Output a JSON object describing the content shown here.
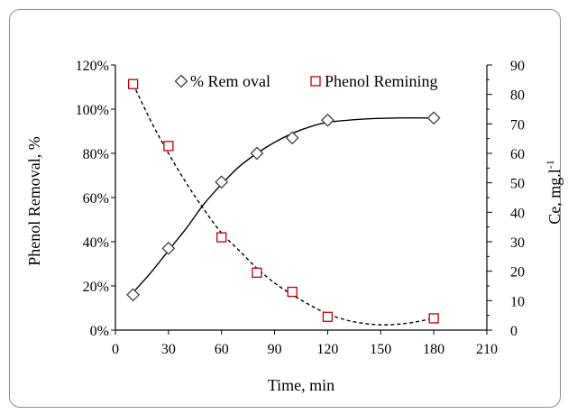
{
  "chart_data": {
    "type": "line",
    "xlabel": "Time,  min",
    "ylabel_left": "Phenol Removal,  %",
    "ylabel_right": "Ce, mg.l",
    "ylabel_right_superscript": "-1",
    "xlim": [
      0,
      210
    ],
    "x_ticks": [
      "0",
      "30",
      "60",
      "90",
      "120",
      "150",
      "180",
      "210"
    ],
    "ylim_left": [
      0,
      120
    ],
    "y_left_ticks": [
      "0%",
      "20%",
      "40%",
      "60%",
      "80%",
      "100%",
      "120%"
    ],
    "ylim_right": [
      0,
      90
    ],
    "y_right_ticks": [
      "0",
      "10",
      "20",
      "30",
      "40",
      "50",
      "60",
      "70",
      "80",
      "90"
    ],
    "grid": false,
    "legend_position": "top",
    "series": [
      {
        "name": "% Rem oval",
        "axis": "left",
        "marker": "diamond",
        "line_style": "solid",
        "x": [
          10,
          30,
          60,
          80,
          100,
          120,
          180
        ],
        "values": [
          16,
          37,
          67,
          80,
          87,
          95,
          96
        ],
        "fit": [
          [
            10,
            17
          ],
          [
            20,
            26
          ],
          [
            30,
            36
          ],
          [
            40,
            46
          ],
          [
            50,
            57
          ],
          [
            60,
            66
          ],
          [
            70,
            74
          ],
          [
            80,
            80
          ],
          [
            90,
            85
          ],
          [
            100,
            89
          ],
          [
            110,
            92
          ],
          [
            120,
            94
          ],
          [
            140,
            95.5
          ],
          [
            160,
            96
          ],
          [
            180,
            96
          ]
        ]
      },
      {
        "name": "Phenol Remining",
        "axis": "right",
        "marker": "square",
        "line_style": "dashed",
        "color": "#c00000",
        "x": [
          10,
          30,
          60,
          80,
          100,
          120,
          180
        ],
        "values": [
          83.5,
          62.5,
          31.5,
          19.5,
          13,
          4.5,
          4
        ],
        "fit": [
          [
            10,
            83.5
          ],
          [
            20,
            71
          ],
          [
            30,
            60
          ],
          [
            40,
            50
          ],
          [
            50,
            41
          ],
          [
            60,
            33
          ],
          [
            70,
            27
          ],
          [
            80,
            21
          ],
          [
            90,
            16
          ],
          [
            100,
            12
          ],
          [
            110,
            8.5
          ],
          [
            120,
            5.5
          ],
          [
            130,
            3.5
          ],
          [
            140,
            2.3
          ],
          [
            150,
            1.8
          ],
          [
            160,
            2
          ],
          [
            170,
            2.8
          ],
          [
            180,
            4
          ]
        ]
      }
    ]
  }
}
